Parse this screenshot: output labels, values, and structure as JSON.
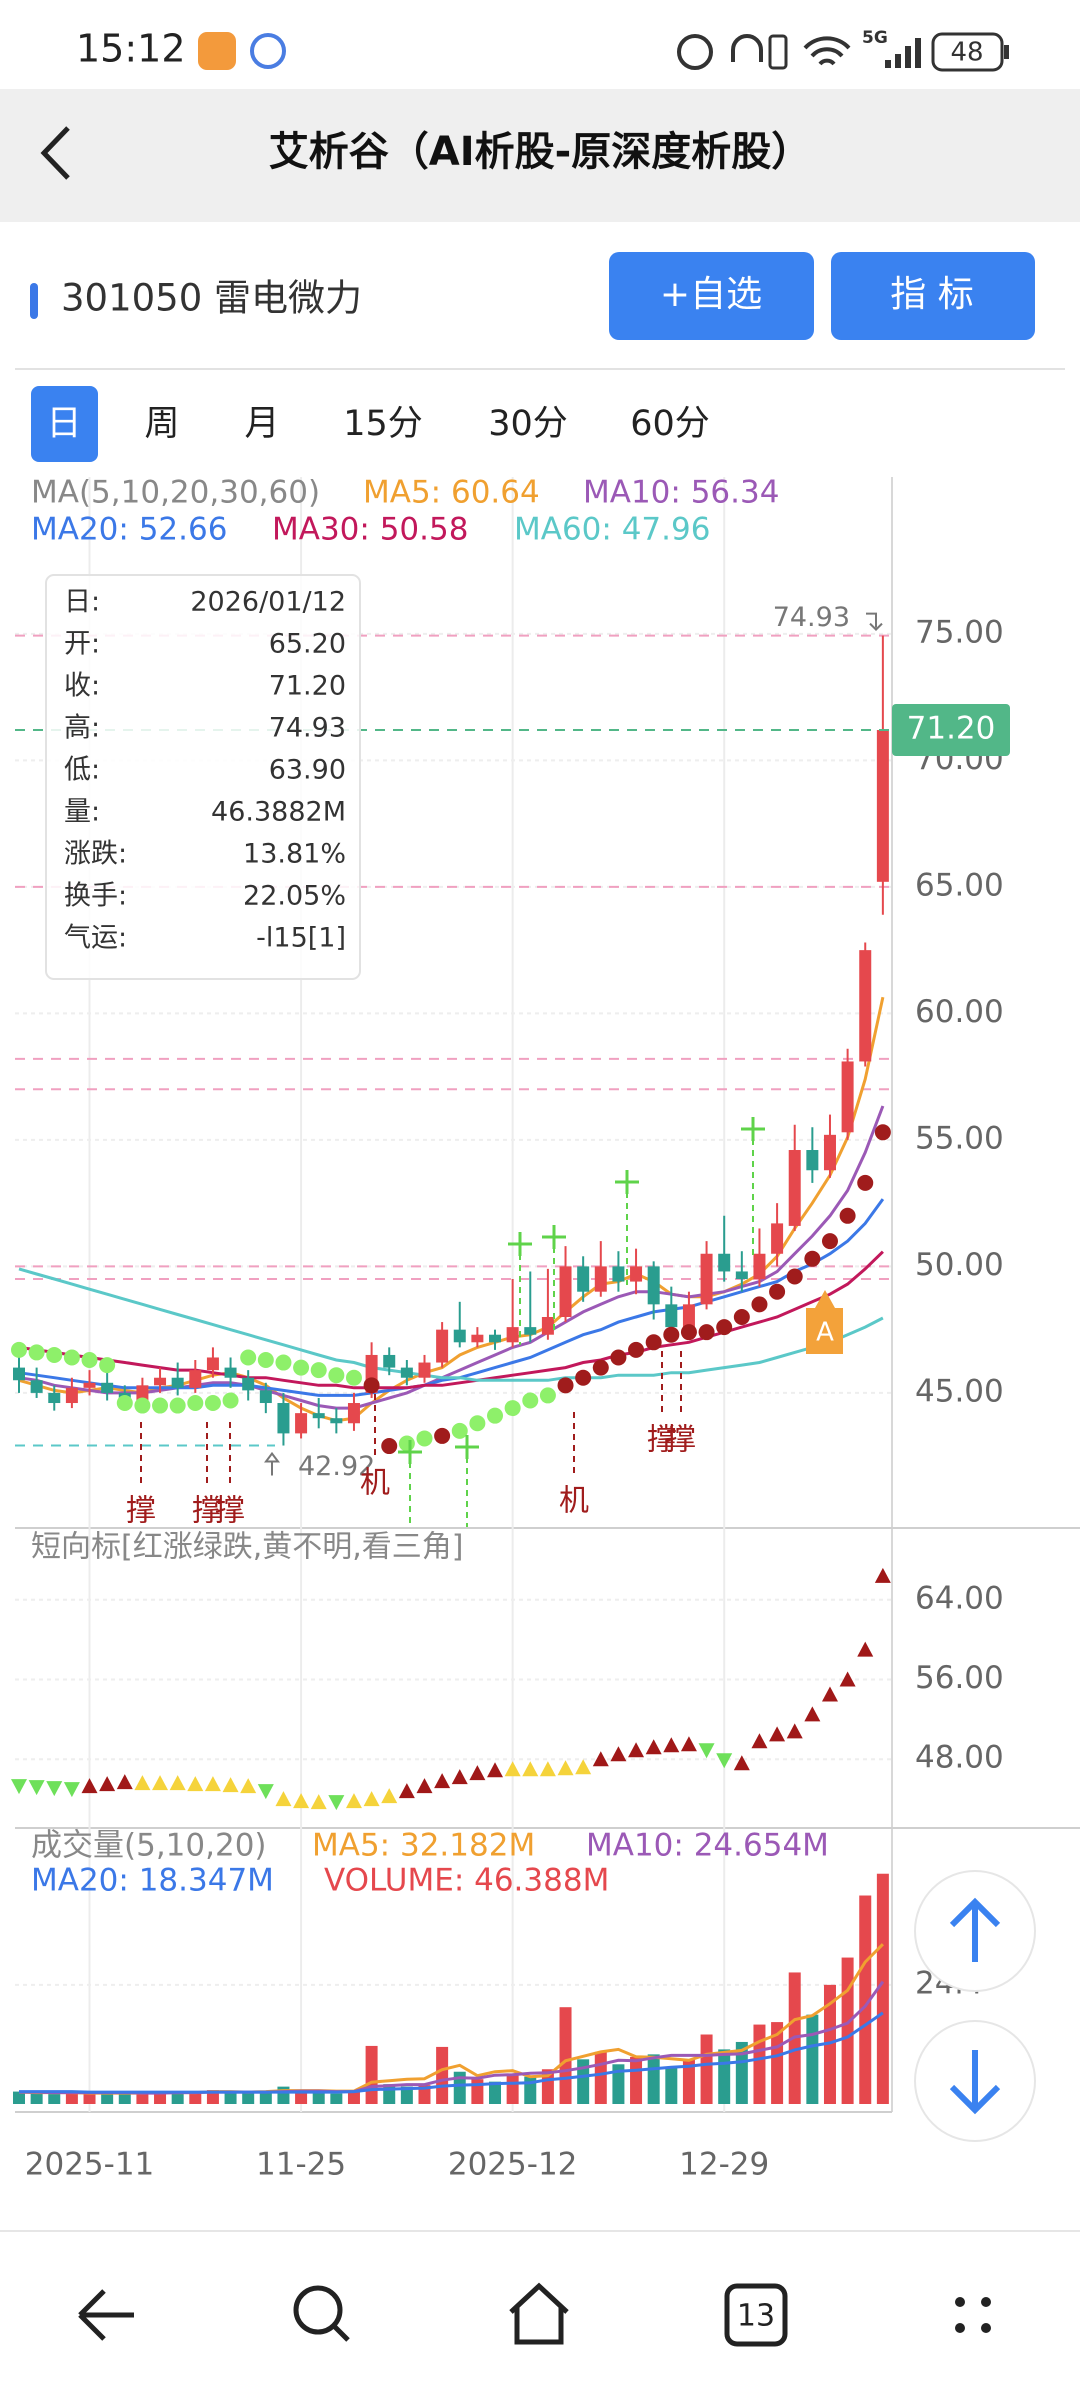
{
  "status_bar": {
    "time": "15:12",
    "network": "5G",
    "battery": "48"
  },
  "header": {
    "title": "艾析谷（AI析股-原深度析股）"
  },
  "stock": {
    "name": "301050 雷电微力"
  },
  "buttons": [
    "+自选",
    "指 标"
  ],
  "tabs": [
    "日",
    "周",
    "月",
    "15分",
    "30分",
    "60分"
  ],
  "info_box": {
    "rows": [
      [
        "日:",
        "2026/01/12"
      ],
      [
        "开:",
        "65.20"
      ],
      [
        "收:",
        "71.20"
      ],
      [
        "高:",
        "74.93"
      ],
      [
        "低:",
        "63.90"
      ],
      [
        "量:",
        "46.3882M"
      ],
      [
        "涨跌:",
        "13.81%"
      ],
      [
        "换手:",
        "22.05%"
      ],
      [
        "气运:",
        "-l15[1]"
      ]
    ]
  },
  "chart_data": [
    {
      "type": "candlestick",
      "indicator_label": "MA(5,10,20,30,60)",
      "candles": {
        "open": [
          46.0,
          45.5,
          45.0,
          44.6,
          45.2,
          45.4,
          45.0,
          44.7,
          45.3,
          45.6,
          45.2,
          45.9,
          46.0,
          45.6,
          45.1,
          44.6,
          43.4,
          44.2,
          44.0,
          43.8,
          45.0,
          46.5,
          46.0,
          45.6,
          46.2,
          47.5,
          47.0,
          47.3,
          47.0,
          47.6,
          47.3,
          48.0,
          50.0,
          49.0,
          50.0,
          49.4,
          50.0,
          48.5,
          47.6,
          48.5,
          50.5,
          49.8,
          49.5,
          50.5,
          51.6,
          54.6,
          53.8,
          55.3,
          58.1,
          65.2
        ],
        "close": [
          45.5,
          45.0,
          44.6,
          45.2,
          45.4,
          45.0,
          44.7,
          45.3,
          45.6,
          45.2,
          45.9,
          46.4,
          45.6,
          45.1,
          44.6,
          43.4,
          44.2,
          44.0,
          43.8,
          44.6,
          46.5,
          46.0,
          45.6,
          46.2,
          47.5,
          47.0,
          47.3,
          47.0,
          47.6,
          47.3,
          48.0,
          50.0,
          49.0,
          50.0,
          49.4,
          50.0,
          48.5,
          47.6,
          48.5,
          50.5,
          49.8,
          49.5,
          50.5,
          51.7,
          54.6,
          53.8,
          55.2,
          58.1,
          62.5,
          71.2
        ],
        "high": [
          46.5,
          46.0,
          45.3,
          45.6,
          45.9,
          45.8,
          45.3,
          45.6,
          46.0,
          46.2,
          46.3,
          46.8,
          46.4,
          45.9,
          45.4,
          45.0,
          44.6,
          44.8,
          44.4,
          45.0,
          47.0,
          46.8,
          46.3,
          46.5,
          47.8,
          48.6,
          47.6,
          47.5,
          49.5,
          49.8,
          49.9,
          50.8,
          50.4,
          51.0,
          50.6,
          50.7,
          50.2,
          49.2,
          49.0,
          51.0,
          52.0,
          50.6,
          51.5,
          52.5,
          55.6,
          55.5,
          56.0,
          58.6,
          62.8,
          74.93
        ],
        "low": [
          45.0,
          44.8,
          44.3,
          44.4,
          44.9,
          44.7,
          44.4,
          44.5,
          45.0,
          44.9,
          45.0,
          45.6,
          45.2,
          44.7,
          44.2,
          42.92,
          43.2,
          43.6,
          43.4,
          43.5,
          44.8,
          45.7,
          45.3,
          45.4,
          46.0,
          46.8,
          46.8,
          46.7,
          46.8,
          47.0,
          47.1,
          47.8,
          48.6,
          48.8,
          49.0,
          48.9,
          47.9,
          47.3,
          47.4,
          48.3,
          49.4,
          49.0,
          49.2,
          50.0,
          51.4,
          53.3,
          53.5,
          55.0,
          57.9,
          63.9
        ]
      },
      "up_color": "#e5484d",
      "down_color": "#2a9d8f",
      "series": [
        {
          "legend": "MA5: 60.64",
          "color": "#f0a030",
          "values": [
            45.5,
            45.3,
            45.1,
            45.0,
            45.1,
            45.2,
            45.1,
            45.0,
            45.2,
            45.3,
            45.5,
            45.7,
            45.8,
            45.6,
            45.3,
            44.8,
            44.4,
            44.1,
            43.9,
            44.0,
            44.6,
            45.1,
            45.5,
            45.8,
            46.0,
            46.5,
            46.8,
            47.0,
            47.2,
            47.3,
            47.6,
            48.2,
            48.8,
            49.3,
            49.4,
            49.7,
            49.4,
            48.9,
            48.8,
            48.8,
            49.0,
            49.3,
            49.7,
            50.4,
            51.5,
            52.5,
            53.6,
            55.1,
            57.4,
            60.64
          ]
        },
        {
          "legend": "MA10: 56.34",
          "color": "#9b59b6",
          "values": [
            45.6,
            45.5,
            45.3,
            45.2,
            45.1,
            45.0,
            45.0,
            45.0,
            45.1,
            45.2,
            45.3,
            45.4,
            45.4,
            45.3,
            45.1,
            44.9,
            44.7,
            44.5,
            44.4,
            44.4,
            44.6,
            44.8,
            45.0,
            45.3,
            45.6,
            45.9,
            46.2,
            46.5,
            46.8,
            47.0,
            47.4,
            47.8,
            48.2,
            48.5,
            48.8,
            49.0,
            49.0,
            48.9,
            48.8,
            48.9,
            49.0,
            49.2,
            49.4,
            49.8,
            50.5,
            51.2,
            52.0,
            53.0,
            54.5,
            56.34
          ]
        },
        {
          "legend": "MA20: 52.66",
          "color": "#3b78e7",
          "values": [
            45.8,
            45.7,
            45.6,
            45.5,
            45.4,
            45.3,
            45.2,
            45.2,
            45.2,
            45.2,
            45.2,
            45.3,
            45.3,
            45.3,
            45.2,
            45.1,
            45.0,
            44.9,
            44.9,
            44.9,
            45.0,
            45.1,
            45.2,
            45.3,
            45.5,
            45.6,
            45.8,
            46.0,
            46.2,
            46.4,
            46.7,
            47.0,
            47.3,
            47.5,
            47.8,
            48.0,
            48.2,
            48.3,
            48.4,
            48.6,
            48.8,
            49.0,
            49.2,
            49.4,
            49.8,
            50.1,
            50.5,
            51.0,
            51.7,
            52.66
          ]
        },
        {
          "legend": "MA30: 50.58",
          "color": "#c2185b",
          "values": [
            46.8,
            46.7,
            46.6,
            46.5,
            46.4,
            46.3,
            46.2,
            46.1,
            46.0,
            45.9,
            45.9,
            45.8,
            45.7,
            45.6,
            45.6,
            45.5,
            45.4,
            45.3,
            45.3,
            45.2,
            45.2,
            45.2,
            45.2,
            45.3,
            45.3,
            45.4,
            45.5,
            45.6,
            45.7,
            45.8,
            45.9,
            46.0,
            46.2,
            46.3,
            46.5,
            46.6,
            46.8,
            46.9,
            47.0,
            47.2,
            47.4,
            47.6,
            47.8,
            48.0,
            48.3,
            48.6,
            48.9,
            49.3,
            49.9,
            50.58
          ]
        },
        {
          "legend": "MA60: 47.96",
          "color": "#5bc8c8",
          "values": [
            49.9,
            49.7,
            49.5,
            49.3,
            49.1,
            48.9,
            48.7,
            48.5,
            48.3,
            48.1,
            47.9,
            47.7,
            47.5,
            47.3,
            47.1,
            46.9,
            46.7,
            46.5,
            46.3,
            46.2,
            46.0,
            45.9,
            45.8,
            45.7,
            45.6,
            45.6,
            45.5,
            45.5,
            45.5,
            45.5,
            45.5,
            45.6,
            45.6,
            45.6,
            45.7,
            45.7,
            45.7,
            45.8,
            45.8,
            45.9,
            46.0,
            46.1,
            46.2,
            46.4,
            46.6,
            46.8,
            47.0,
            47.3,
            47.6,
            47.96
          ]
        }
      ],
      "support_green": {
        "color": "#8ef06a",
        "values": [
          46.7,
          46.6,
          46.5,
          46.4,
          46.3,
          46.1,
          44.6,
          44.5,
          44.5,
          44.5,
          44.6,
          44.6,
          44.7,
          46.4,
          46.3,
          46.2,
          46.0,
          45.9,
          45.7,
          45.6,
          null,
          null,
          43.0,
          43.2,
          null,
          43.5,
          43.8,
          44.1,
          44.4,
          44.7,
          44.9,
          null,
          null,
          null,
          null,
          null,
          null,
          null,
          null,
          null,
          null,
          null,
          null,
          null,
          null,
          null,
          null,
          null,
          null,
          null
        ]
      },
      "support_red": {
        "color": "#a01c1c",
        "values": [
          null,
          null,
          null,
          null,
          null,
          null,
          null,
          null,
          null,
          null,
          null,
          null,
          null,
          null,
          null,
          null,
          null,
          null,
          null,
          null,
          45.3,
          42.9,
          null,
          null,
          43.3,
          null,
          null,
          null,
          null,
          null,
          null,
          45.3,
          45.6,
          46.0,
          46.4,
          46.7,
          47.0,
          47.3,
          47.4,
          47.4,
          47.6,
          48.0,
          48.5,
          49.0,
          49.6,
          50.3,
          51.0,
          52.0,
          53.3,
          55.3
        ]
      },
      "ref_lines": [
        74.93,
        65.0,
        58.2,
        57.0,
        50.0,
        49.5
      ],
      "ref_color": "#f0a0c0",
      "last_price": {
        "value": 71.2,
        "label": "71.20"
      },
      "last_color": "#52b788",
      "high_mark": {
        "value": 74.93,
        "label": "74.93"
      },
      "low_mark": {
        "value": 42.92,
        "label": "42.92"
      },
      "low_color": "#5bc8c8",
      "marker": "A",
      "signal_labels": [
        "撑",
        "撑",
        "撑",
        "机",
        "机",
        "撑",
        "撑"
      ],
      "ylim": [
        39.7,
        81.2
      ],
      "yticks": [
        {
          "value": 45,
          "label": "45.00"
        },
        {
          "value": 50,
          "label": "50.00"
        },
        {
          "value": 55,
          "label": "55.00"
        },
        {
          "value": 60,
          "label": "60.00"
        },
        {
          "value": 65,
          "label": "65.00"
        },
        {
          "value": 70,
          "label": "70.00"
        },
        {
          "value": 75,
          "label": "75.00"
        }
      ]
    },
    {
      "type": "signal",
      "title": "短向标[红涨绿跌,黄不明,看三角]",
      "down_color": "#6ee05a",
      "values": [
        45.3,
        45.2,
        45.1,
        45.0,
        45.3,
        45.5,
        45.7,
        45.6,
        45.6,
        45.6,
        45.5,
        45.5,
        45.4,
        45.3,
        44.8,
        44.0,
        43.8,
        43.7,
        43.7,
        43.8,
        44.0,
        44.3,
        44.8,
        45.3,
        45.8,
        46.2,
        46.6,
        46.9,
        47.0,
        47.0,
        47.0,
        47.1,
        47.2,
        48.0,
        48.5,
        48.9,
        49.2,
        49.4,
        49.5,
        48.9,
        47.9,
        47.6,
        49.8,
        50.5,
        50.8,
        52.5,
        54.5,
        56.0,
        59.0,
        66.4
      ],
      "colors": [
        "#6ee05a",
        "#6ee05a",
        "#6ee05a",
        "#6ee05a",
        "#a01818",
        "#a01818",
        "#a01818",
        "#f5d33b",
        "#f5d33b",
        "#f5d33b",
        "#f5d33b",
        "#f5d33b",
        "#f5d33b",
        "#f5d33b",
        "#6ee05a",
        "#f5d33b",
        "#f5d33b",
        "#f5d33b",
        "#6ee05a",
        "#f5d33b",
        "#f5d33b",
        "#f5d33b",
        "#a01818",
        "#a01818",
        "#a01818",
        "#a01818",
        "#a01818",
        "#a01818",
        "#f5d33b",
        "#f5d33b",
        "#f5d33b",
        "#f5d33b",
        "#f5d33b",
        "#a01818",
        "#a01818",
        "#a01818",
        "#a01818",
        "#a01818",
        "#a01818",
        "#6ee05a",
        "#6ee05a",
        "#a01818",
        "#a01818",
        "#a01818",
        "#a01818",
        "#a01818",
        "#a01818",
        "#a01818",
        "#a01818",
        "#a01818"
      ],
      "ylim": [
        41.1,
        71.0
      ],
      "yticks": [
        {
          "value": 48,
          "label": "48.00"
        },
        {
          "value": 56,
          "label": "56.00"
        },
        {
          "value": 64,
          "label": "64.00"
        }
      ]
    },
    {
      "type": "bar",
      "indicator_label": "成交量(5,10,20)",
      "volume_label": "VOLUME: 46.388M",
      "volume_color": "#e5484d",
      "categories": [
        null,
        null,
        null,
        null,
        "2025-11",
        null,
        null,
        null,
        null,
        null,
        null,
        null,
        null,
        null,
        null,
        null,
        "11-25",
        null,
        null,
        null,
        null,
        null,
        null,
        null,
        null,
        null,
        null,
        null,
        "2025-12",
        null,
        null,
        null,
        null,
        null,
        null,
        null,
        null,
        null,
        null,
        null,
        "12-29",
        null,
        null,
        null,
        null,
        null,
        null,
        null,
        null,
        null
      ],
      "values": [
        2.5,
        2.2,
        2.0,
        2.3,
        2.1,
        2.4,
        2.0,
        2.2,
        2.6,
        2.3,
        2.5,
        2.8,
        2.4,
        2.2,
        2.6,
        3.5,
        2.8,
        2.3,
        2.1,
        2.5,
        11.7,
        4.0,
        3.5,
        3.8,
        11.5,
        6.5,
        5.0,
        4.5,
        6.0,
        5.5,
        7.0,
        19.5,
        9.0,
        10.5,
        8.0,
        9.5,
        10.0,
        7.5,
        9.0,
        14.0,
        11.0,
        12.5,
        16.0,
        16.5,
        26.5,
        18.0,
        24.0,
        29.5,
        42.0,
        46.388
      ],
      "series": [
        {
          "legend": "MA5: 32.182M",
          "color": "#f0a030",
          "values": [
            2.4,
            2.3,
            2.3,
            2.3,
            2.2,
            2.2,
            2.2,
            2.2,
            2.3,
            2.3,
            2.3,
            2.5,
            2.5,
            2.4,
            2.5,
            2.7,
            2.7,
            2.7,
            2.6,
            2.6,
            4.4,
            4.7,
            5.0,
            5.1,
            6.9,
            7.8,
            5.7,
            6.5,
            6.7,
            5.5,
            5.7,
            8.7,
            9.6,
            10.5,
            11.0,
            9.5,
            9.4,
            9.1,
            8.8,
            10.0,
            10.4,
            10.8,
            12.6,
            14.0,
            17.0,
            17.8,
            20.2,
            22.9,
            28.6,
            32.182
          ]
        },
        {
          "legend": "MA10: 24.654M",
          "color": "#9b59b6",
          "values": [
            2.4,
            2.4,
            2.3,
            2.3,
            2.3,
            2.3,
            2.3,
            2.2,
            2.2,
            2.3,
            2.3,
            2.4,
            2.4,
            2.4,
            2.4,
            2.5,
            2.6,
            2.6,
            2.5,
            2.5,
            3.5,
            3.7,
            3.9,
            3.9,
            4.8,
            5.3,
            5.2,
            5.8,
            5.9,
            6.2,
            6.3,
            6.7,
            7.3,
            8.0,
            8.8,
            8.7,
            9.3,
            9.8,
            9.8,
            9.8,
            10.0,
            10.1,
            10.8,
            11.5,
            13.5,
            14.0,
            15.0,
            16.3,
            19.7,
            24.654
          ]
        },
        {
          "legend": "MA20: 18.347M",
          "color": "#3b78e7",
          "values": [
            2.5,
            2.5,
            2.5,
            2.5,
            2.4,
            2.4,
            2.4,
            2.4,
            2.4,
            2.4,
            2.4,
            2.4,
            2.4,
            2.4,
            2.4,
            2.4,
            2.4,
            2.4,
            2.4,
            2.5,
            2.9,
            3.0,
            3.1,
            3.2,
            3.6,
            3.8,
            3.9,
            4.1,
            4.2,
            4.3,
            4.9,
            5.2,
            5.6,
            6.0,
            6.6,
            6.8,
            7.1,
            7.4,
            7.6,
            8.0,
            8.2,
            8.5,
            9.1,
            9.7,
            10.9,
            11.7,
            12.3,
            13.5,
            15.9,
            18.347
          ]
        }
      ],
      "ylim": [
        0,
        55.6
      ],
      "yticks": [
        {
          "value": 24,
          "label": "24M"
        }
      ]
    }
  ],
  "nav": {
    "tab_count": "13"
  }
}
